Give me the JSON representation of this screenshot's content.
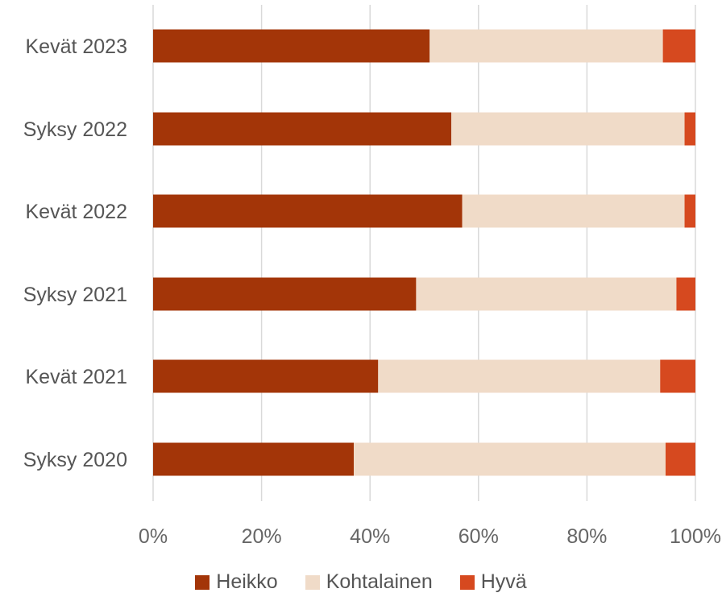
{
  "chart_data": {
    "type": "bar",
    "orientation": "horizontal",
    "stacked": "percent",
    "categories": [
      "Kevät 2023",
      "Syksy 2022",
      "Kevät 2022",
      "Syksy 2021",
      "Kevät 2021",
      "Syksy 2020"
    ],
    "series": [
      {
        "name": "Heikko",
        "color": "#A33508",
        "values": [
          51,
          55,
          57,
          48.5,
          41.5,
          37
        ]
      },
      {
        "name": "Kohtalainen",
        "color": "#F0DBC8",
        "values": [
          43,
          43,
          41,
          48,
          52,
          57.5
        ]
      },
      {
        "name": "Hyvä",
        "color": "#D6491F",
        "values": [
          6,
          2,
          2,
          3.5,
          6.5,
          5.5
        ]
      }
    ],
    "x_ticks": [
      "0%",
      "20%",
      "40%",
      "60%",
      "80%",
      "100%"
    ],
    "xlim": [
      0,
      100
    ],
    "grid": true,
    "legend_position": "bottom"
  }
}
